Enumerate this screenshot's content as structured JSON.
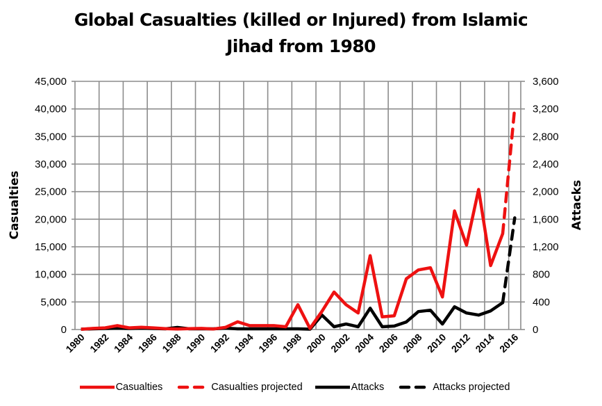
{
  "chart_data": {
    "type": "line",
    "title": "Global Casualties (killed or Injured) from Islamic Jihad from 1980",
    "title_lines": [
      "Global Casualties (killed or Injured) from Islamic",
      "Jihad from 1980"
    ],
    "xlabel": "",
    "ylabel": "Casualties",
    "y2label": "Attacks",
    "ylim": [
      0,
      45000
    ],
    "y2lim": [
      0,
      3600
    ],
    "y_ticks": [
      "0",
      "5,000",
      "10,000",
      "15,000",
      "20,000",
      "25,000",
      "30,000",
      "35,000",
      "40,000",
      "45,000"
    ],
    "y2_ticks": [
      "0",
      "400",
      "800",
      "1,200",
      "1,600",
      "2,000",
      "2,400",
      "2,800",
      "3,200",
      "3,600"
    ],
    "x_tick_labels": [
      "1980",
      "1982",
      "1984",
      "1986",
      "1988",
      "1990",
      "1992",
      "1994",
      "1996",
      "1998",
      "2000",
      "2002",
      "2004",
      "2006",
      "2008",
      "2010",
      "2012",
      "2014",
      "2016"
    ],
    "grid": true,
    "legend_position": "bottom",
    "x": [
      1980,
      1981,
      1982,
      1983,
      1984,
      1985,
      1986,
      1987,
      1988,
      1989,
      1990,
      1991,
      1992,
      1993,
      1994,
      1995,
      1996,
      1997,
      1998,
      1999,
      2000,
      2001,
      2002,
      2003,
      2004,
      2005,
      2006,
      2007,
      2008,
      2009,
      2010,
      2011,
      2012,
      2013,
      2014,
      2015,
      2016
    ],
    "series": [
      {
        "name": "Casualties",
        "axis": "left",
        "style": "solid",
        "color": "#ee1111",
        "x": [
          1980,
          1981,
          1982,
          1983,
          1984,
          1985,
          1986,
          1987,
          1988,
          1989,
          1990,
          1991,
          1992,
          1993,
          1994,
          1995,
          1996,
          1997,
          1998,
          1999,
          2000,
          2001,
          2002,
          2003,
          2004,
          2005,
          2006,
          2007,
          2008,
          2009,
          2010,
          2011,
          2012,
          2013,
          2014,
          2015
        ],
        "values": [
          50,
          200,
          300,
          700,
          300,
          400,
          300,
          150,
          100,
          150,
          200,
          100,
          400,
          1400,
          700,
          700,
          700,
          500,
          4500,
          200,
          3300,
          6800,
          4500,
          3000,
          13400,
          2300,
          2500,
          9200,
          10800,
          11200,
          5900,
          21500,
          15300,
          25400,
          11600,
          17400
        ]
      },
      {
        "name": "Casualties projected",
        "axis": "left",
        "style": "dashed",
        "color": "#ee1111",
        "x": [
          2015,
          2016
        ],
        "values": [
          17400,
          40200
        ]
      },
      {
        "name": "Attacks",
        "axis": "right",
        "style": "solid",
        "color": "#000000",
        "x": [
          1980,
          1981,
          1982,
          1983,
          1984,
          1985,
          1986,
          1987,
          1988,
          1989,
          1990,
          1991,
          1992,
          1993,
          1994,
          1995,
          1996,
          1997,
          1998,
          1999,
          2000,
          2001,
          2002,
          2003,
          2004,
          2005,
          2006,
          2007,
          2008,
          2009,
          2010,
          2011,
          2012,
          2013,
          2014,
          2015
        ],
        "values": [
          5,
          10,
          15,
          20,
          15,
          20,
          15,
          10,
          30,
          10,
          10,
          10,
          20,
          10,
          10,
          10,
          10,
          10,
          10,
          5,
          210,
          40,
          80,
          40,
          310,
          40,
          50,
          110,
          260,
          280,
          80,
          330,
          240,
          210,
          270,
          390
        ]
      },
      {
        "name": "Attacks projected",
        "axis": "right",
        "style": "dashed",
        "color": "#000000",
        "x": [
          2015,
          2016
        ],
        "values": [
          390,
          1620
        ]
      }
    ]
  },
  "legend": {
    "items": [
      {
        "label": "Casualties",
        "color": "#ee1111",
        "style": "solid"
      },
      {
        "label": "Casualties projected",
        "color": "#ee1111",
        "style": "dashed"
      },
      {
        "label": "Attacks",
        "color": "#000000",
        "style": "solid"
      },
      {
        "label": "Attacks projected",
        "color": "#000000",
        "style": "dashed"
      }
    ]
  },
  "colors": {
    "grid": "#8c8c8c",
    "casualties": "#ee1111",
    "attacks": "#000000"
  }
}
